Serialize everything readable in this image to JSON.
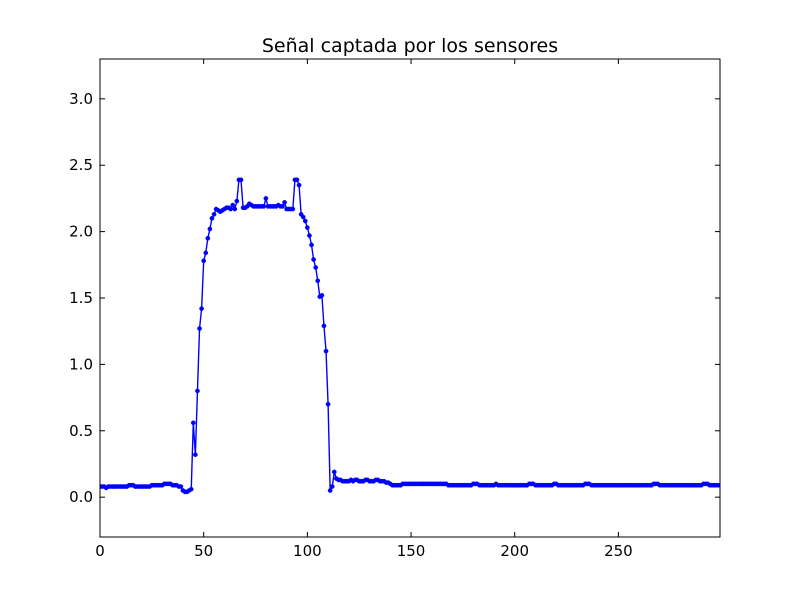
{
  "chart_data": {
    "type": "line",
    "title": "Señal captada por los sensores",
    "xlabel": "",
    "ylabel": "",
    "xlim": [
      0,
      299
    ],
    "ylim": [
      -0.3,
      3.3
    ],
    "xticks": [
      0,
      50,
      100,
      150,
      200,
      250
    ],
    "xtick_labels": [
      "0",
      "50",
      "100",
      "150",
      "200",
      "250"
    ],
    "yticks": [
      0.0,
      0.5,
      1.0,
      1.5,
      2.0,
      2.5,
      3.0
    ],
    "ytick_labels": [
      "0.0",
      "0.5",
      "1.0",
      "1.5",
      "2.0",
      "2.5",
      "3.0"
    ],
    "grid": false,
    "marker": "circle",
    "series": [
      {
        "color": "#0000ff",
        "x_start": 0,
        "x_step": 1,
        "y": [
          0.08,
          0.08,
          0.08,
          0.07,
          0.08,
          0.08,
          0.08,
          0.08,
          0.08,
          0.08,
          0.08,
          0.08,
          0.08,
          0.08,
          0.09,
          0.09,
          0.09,
          0.08,
          0.08,
          0.08,
          0.08,
          0.08,
          0.08,
          0.08,
          0.08,
          0.09,
          0.09,
          0.09,
          0.09,
          0.09,
          0.09,
          0.1,
          0.1,
          0.1,
          0.1,
          0.09,
          0.09,
          0.09,
          0.08,
          0.08,
          0.05,
          0.04,
          0.04,
          0.05,
          0.06,
          0.56,
          0.32,
          0.8,
          1.27,
          1.42,
          1.78,
          1.84,
          1.95,
          2.02,
          2.1,
          2.13,
          2.17,
          2.16,
          2.15,
          2.16,
          2.17,
          2.18,
          2.18,
          2.17,
          2.2,
          2.17,
          2.23,
          2.39,
          2.39,
          2.18,
          2.18,
          2.19,
          2.21,
          2.2,
          2.19,
          2.19,
          2.19,
          2.19,
          2.19,
          2.19,
          2.25,
          2.19,
          2.19,
          2.19,
          2.19,
          2.19,
          2.2,
          2.19,
          2.19,
          2.22,
          2.17,
          2.17,
          2.17,
          2.17,
          2.39,
          2.39,
          2.35,
          2.13,
          2.11,
          2.08,
          2.03,
          1.97,
          1.9,
          1.79,
          1.73,
          1.63,
          1.51,
          1.52,
          1.29,
          1.1,
          0.7,
          0.05,
          0.08,
          0.19,
          0.14,
          0.13,
          0.13,
          0.12,
          0.12,
          0.12,
          0.12,
          0.13,
          0.12,
          0.13,
          0.13,
          0.12,
          0.12,
          0.12,
          0.13,
          0.13,
          0.12,
          0.12,
          0.12,
          0.13,
          0.13,
          0.12,
          0.12,
          0.12,
          0.11,
          0.11,
          0.1,
          0.09,
          0.09,
          0.09,
          0.09,
          0.09,
          0.1,
          0.1,
          0.1,
          0.1,
          0.1,
          0.1,
          0.1,
          0.1,
          0.1,
          0.1,
          0.1,
          0.1,
          0.1,
          0.1,
          0.1,
          0.1,
          0.1,
          0.1,
          0.1,
          0.1,
          0.1,
          0.1,
          0.09,
          0.09,
          0.09,
          0.09,
          0.09,
          0.09,
          0.09,
          0.09,
          0.09,
          0.09,
          0.09,
          0.09,
          0.1,
          0.1,
          0.1,
          0.09,
          0.09,
          0.09,
          0.09,
          0.09,
          0.09,
          0.09,
          0.09,
          0.1,
          0.09,
          0.09,
          0.09,
          0.09,
          0.09,
          0.09,
          0.09,
          0.09,
          0.09,
          0.09,
          0.09,
          0.09,
          0.09,
          0.09,
          0.09,
          0.1,
          0.1,
          0.1,
          0.09,
          0.09,
          0.09,
          0.09,
          0.09,
          0.09,
          0.09,
          0.09,
          0.09,
          0.1,
          0.1,
          0.09,
          0.09,
          0.09,
          0.09,
          0.09,
          0.09,
          0.09,
          0.09,
          0.09,
          0.09,
          0.09,
          0.09,
          0.09,
          0.1,
          0.1,
          0.1,
          0.09,
          0.09,
          0.09,
          0.09,
          0.09,
          0.09,
          0.09,
          0.09,
          0.09,
          0.09,
          0.09,
          0.09,
          0.09,
          0.09,
          0.09,
          0.09,
          0.09,
          0.09,
          0.09,
          0.09,
          0.09,
          0.09,
          0.09,
          0.09,
          0.09,
          0.09,
          0.09,
          0.09,
          0.09,
          0.09,
          0.1,
          0.1,
          0.1,
          0.09,
          0.09,
          0.09,
          0.09,
          0.09,
          0.09,
          0.09,
          0.09,
          0.09,
          0.09,
          0.09,
          0.09,
          0.09,
          0.09,
          0.09,
          0.09,
          0.09,
          0.09,
          0.09,
          0.09,
          0.09,
          0.1,
          0.1,
          0.1,
          0.09,
          0.09,
          0.09,
          0.09,
          0.09,
          0.09
        ]
      }
    ]
  }
}
